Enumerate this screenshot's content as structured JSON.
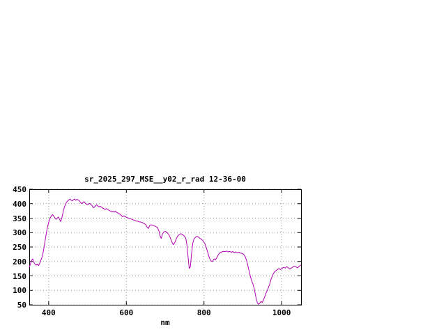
{
  "window": {
    "background": "#ffffff"
  },
  "chart_data": {
    "type": "line",
    "title": "sr_2025_297_MSE__y02_r_rad 12-36-00",
    "xlabel": "nm",
    "ylabel": "",
    "xlim": [
      350,
      1050
    ],
    "ylim": [
      50,
      450
    ],
    "xticks": [
      "400",
      "600",
      "800",
      "1000"
    ],
    "xtick_values": [
      400,
      600,
      800,
      1000
    ],
    "yticks": [
      "50",
      "100",
      "150",
      "200",
      "250",
      "300",
      "350",
      "400",
      "450"
    ],
    "ytick_values": [
      50,
      100,
      150,
      200,
      250,
      300,
      350,
      400,
      450
    ],
    "grid": true,
    "legend": "none",
    "line_color": "#b000b0",
    "axis_color": "#000000",
    "grid_color": "#999999",
    "series": [
      {
        "points": [
          [
            350,
            178
          ],
          [
            353,
            192
          ],
          [
            356,
            204
          ],
          [
            359,
            209
          ],
          [
            362,
            196
          ],
          [
            365,
            190
          ],
          [
            368,
            187
          ],
          [
            371,
            191
          ],
          [
            374,
            186
          ],
          [
            377,
            194
          ],
          [
            380,
            204
          ],
          [
            383,
            216
          ],
          [
            386,
            234
          ],
          [
            389,
            256
          ],
          [
            392,
            282
          ],
          [
            395,
            306
          ],
          [
            398,
            324
          ],
          [
            401,
            340
          ],
          [
            404,
            351
          ],
          [
            407,
            358
          ],
          [
            410,
            362
          ],
          [
            413,
            357
          ],
          [
            416,
            351
          ],
          [
            419,
            346
          ],
          [
            422,
            350
          ],
          [
            425,
            354
          ],
          [
            428,
            346
          ],
          [
            431,
            338
          ],
          [
            434,
            352
          ],
          [
            437,
            370
          ],
          [
            440,
            386
          ],
          [
            443,
            397
          ],
          [
            446,
            405
          ],
          [
            449,
            410
          ],
          [
            452,
            413
          ],
          [
            455,
            416
          ],
          [
            458,
            412
          ],
          [
            461,
            410
          ],
          [
            464,
            414
          ],
          [
            467,
            416
          ],
          [
            470,
            412
          ],
          [
            473,
            415
          ],
          [
            476,
            413
          ],
          [
            479,
            410
          ],
          [
            482,
            405
          ],
          [
            485,
            400
          ],
          [
            488,
            404
          ],
          [
            491,
            407
          ],
          [
            494,
            402
          ],
          [
            497,
            399
          ],
          [
            500,
            396
          ],
          [
            503,
            399
          ],
          [
            506,
            401
          ],
          [
            509,
            397
          ],
          [
            512,
            393
          ],
          [
            515,
            386
          ],
          [
            518,
            389
          ],
          [
            521,
            393
          ],
          [
            524,
            396
          ],
          [
            527,
            392
          ],
          [
            530,
            389
          ],
          [
            533,
            391
          ],
          [
            536,
            388
          ],
          [
            539,
            385
          ],
          [
            542,
            383
          ],
          [
            545,
            380
          ],
          [
            548,
            383
          ],
          [
            551,
            381
          ],
          [
            554,
            378
          ],
          [
            557,
            376
          ],
          [
            560,
            374
          ],
          [
            563,
            372
          ],
          [
            566,
            374
          ],
          [
            569,
            371
          ],
          [
            572,
            374
          ],
          [
            575,
            370
          ],
          [
            578,
            368
          ],
          [
            581,
            366
          ],
          [
            584,
            363
          ],
          [
            587,
            360
          ],
          [
            590,
            355
          ],
          [
            593,
            358
          ],
          [
            596,
            356
          ],
          [
            599,
            354
          ],
          [
            602,
            352
          ],
          [
            606,
            350
          ],
          [
            610,
            348
          ],
          [
            614,
            346
          ],
          [
            618,
            344
          ],
          [
            622,
            342
          ],
          [
            626,
            340
          ],
          [
            630,
            339
          ],
          [
            634,
            337
          ],
          [
            638,
            336
          ],
          [
            642,
            334
          ],
          [
            646,
            331
          ],
          [
            650,
            328
          ],
          [
            654,
            318
          ],
          [
            657,
            314
          ],
          [
            660,
            324
          ],
          [
            664,
            327
          ],
          [
            668,
            325
          ],
          [
            672,
            323
          ],
          [
            676,
            321
          ],
          [
            680,
            318
          ],
          [
            684,
            305
          ],
          [
            687,
            288
          ],
          [
            690,
            280
          ],
          [
            693,
            295
          ],
          [
            697,
            303
          ],
          [
            701,
            304
          ],
          [
            705,
            300
          ],
          [
            709,
            294
          ],
          [
            713,
            283
          ],
          [
            717,
            268
          ],
          [
            721,
            258
          ],
          [
            725,
            266
          ],
          [
            729,
            280
          ],
          [
            733,
            289
          ],
          [
            737,
            294
          ],
          [
            741,
            296
          ],
          [
            745,
            293
          ],
          [
            749,
            288
          ],
          [
            753,
            281
          ],
          [
            756,
            258
          ],
          [
            759,
            215
          ],
          [
            762,
            176
          ],
          [
            765,
            182
          ],
          [
            768,
            228
          ],
          [
            771,
            262
          ],
          [
            774,
            277
          ],
          [
            778,
            284
          ],
          [
            782,
            287
          ],
          [
            786,
            284
          ],
          [
            790,
            280
          ],
          [
            794,
            276
          ],
          [
            798,
            271
          ],
          [
            802,
            263
          ],
          [
            806,
            247
          ],
          [
            810,
            230
          ],
          [
            814,
            212
          ],
          [
            818,
            202
          ],
          [
            822,
            200
          ],
          [
            826,
            209
          ],
          [
            830,
            206
          ],
          [
            834,
            216
          ],
          [
            838,
            226
          ],
          [
            842,
            231
          ],
          [
            846,
            233
          ],
          [
            850,
            235
          ],
          [
            854,
            234
          ],
          [
            858,
            236
          ],
          [
            862,
            233
          ],
          [
            866,
            235
          ],
          [
            870,
            232
          ],
          [
            874,
            234
          ],
          [
            878,
            231
          ],
          [
            882,
            233
          ],
          [
            886,
            230
          ],
          [
            890,
            232
          ],
          [
            894,
            229
          ],
          [
            898,
            228
          ],
          [
            902,
            225
          ],
          [
            906,
            217
          ],
          [
            910,
            202
          ],
          [
            914,
            180
          ],
          [
            918,
            156
          ],
          [
            922,
            136
          ],
          [
            926,
            122
          ],
          [
            929,
            108
          ],
          [
            932,
            88
          ],
          [
            935,
            68
          ],
          [
            938,
            55
          ],
          [
            941,
            52
          ],
          [
            944,
            56
          ],
          [
            947,
            62
          ],
          [
            950,
            58
          ],
          [
            953,
            66
          ],
          [
            956,
            76
          ],
          [
            959,
            88
          ],
          [
            962,
            97
          ],
          [
            965,
            106
          ],
          [
            969,
            121
          ],
          [
            973,
            139
          ],
          [
            977,
            153
          ],
          [
            981,
            163
          ],
          [
            985,
            168
          ],
          [
            989,
            172
          ],
          [
            993,
            175
          ],
          [
            997,
            172
          ],
          [
            1001,
            176
          ],
          [
            1005,
            180
          ],
          [
            1009,
            177
          ],
          [
            1013,
            182
          ],
          [
            1017,
            178
          ],
          [
            1021,
            174
          ],
          [
            1025,
            177
          ],
          [
            1029,
            181
          ],
          [
            1033,
            184
          ],
          [
            1037,
            181
          ],
          [
            1041,
            178
          ],
          [
            1045,
            183
          ],
          [
            1050,
            188
          ]
        ]
      }
    ]
  }
}
